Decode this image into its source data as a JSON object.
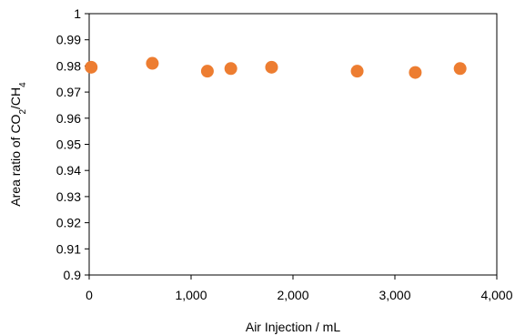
{
  "chart_data": {
    "type": "scatter",
    "xlabel": "Air Injection / mL",
    "ylabel": {
      "prefix": "Area ratio of CO",
      "sub1": "2",
      "mid": "/CH",
      "sub2": "4"
    },
    "xlim": [
      0,
      4000
    ],
    "ylim": [
      0.9,
      1.0
    ],
    "xticks": [
      0,
      1000,
      2000,
      3000,
      4000
    ],
    "xtick_labels": [
      "0",
      "1,000",
      "2,000",
      "3,000",
      "4,000"
    ],
    "yticks": [
      0.9,
      0.91,
      0.92,
      0.93,
      0.94,
      0.95,
      0.96,
      0.97,
      0.98,
      0.99,
      1.0
    ],
    "ytick_labels": [
      "0.9",
      "0.91",
      "0.92",
      "0.93",
      "0.94",
      "0.95",
      "0.96",
      "0.97",
      "0.98",
      "0.99",
      "1"
    ],
    "grid": false,
    "legend": false,
    "marker_color": "#ED7D31",
    "x": [
      20,
      620,
      1160,
      1390,
      1790,
      2630,
      3200,
      3640
    ],
    "y": [
      0.9795,
      0.981,
      0.978,
      0.979,
      0.9795,
      0.978,
      0.9775,
      0.979
    ]
  }
}
